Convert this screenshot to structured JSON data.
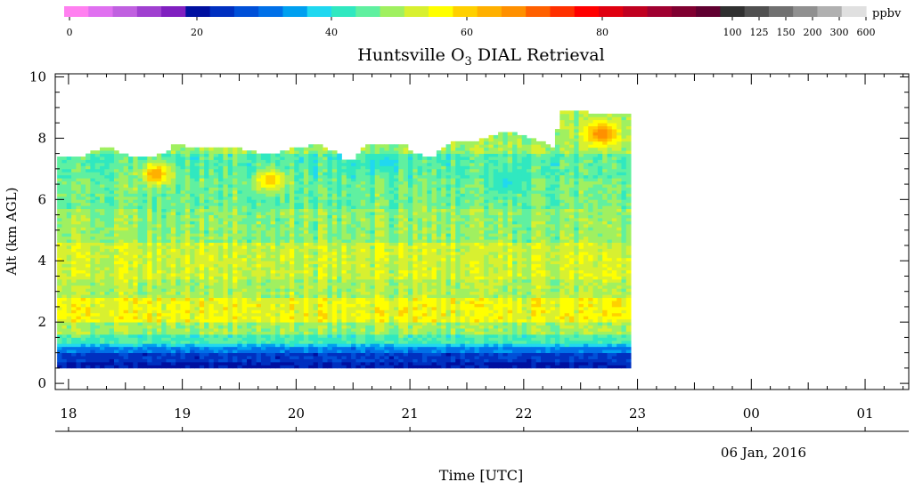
{
  "colorbar": {
    "unit": "ppbv",
    "tick_labels": [
      "0",
      "20",
      "40",
      "60",
      "80",
      "100",
      "125",
      "150",
      "200",
      "300",
      "600"
    ],
    "colors": [
      "#ff80f0",
      "#e070f0",
      "#c060e0",
      "#a040d0",
      "#8020c0",
      "#0010a0",
      "#0030c0",
      "#0050d8",
      "#0070e8",
      "#00a0f0",
      "#20d8f0",
      "#30e8c0",
      "#60f0a0",
      "#a0f060",
      "#d8f030",
      "#ffff00",
      "#ffd000",
      "#ffb000",
      "#ff9000",
      "#ff6000",
      "#ff3000",
      "#ff0000",
      "#e00010",
      "#c00020",
      "#a00030",
      "#800030",
      "#600030",
      "#303030",
      "#505050",
      "#707070",
      "#909090",
      "#b0b0b0",
      "#e0e0e0"
    ]
  },
  "chart_data": {
    "type": "heatmap",
    "title": "Huntsville O3 DIAL Retrieval",
    "title_parts": {
      "pre": "Huntsville O",
      "sub": "3",
      "post": " DIAL Retrieval"
    },
    "xlabel": "Time [UTC]",
    "ylabel": "Alt (km AGL)",
    "date_label": "06 Jan, 2016",
    "x_ticks": [
      "18",
      "19",
      "20",
      "21",
      "22",
      "23",
      "00",
      "01"
    ],
    "y_ticks": [
      0,
      2,
      4,
      6,
      8,
      10
    ],
    "xlim": [
      "17:53",
      "01:23"
    ],
    "ylim": [
      -0.2,
      10.1
    ],
    "data_extent": {
      "start": "17:54",
      "end": "22:55",
      "alt_min_km": 0.5
    },
    "top_boundary_km": [
      [
        "17:54",
        7.3
      ],
      [
        "18:05",
        7.35
      ],
      [
        "18:15",
        7.6
      ],
      [
        "18:20",
        7.65
      ],
      [
        "18:30",
        7.4
      ],
      [
        "18:40",
        7.3
      ],
      [
        "18:50",
        7.5
      ],
      [
        "18:55",
        7.8
      ],
      [
        "19:05",
        7.6
      ],
      [
        "19:15",
        7.7
      ],
      [
        "19:30",
        7.6
      ],
      [
        "19:45",
        7.4
      ],
      [
        "19:55",
        7.6
      ],
      [
        "20:10",
        7.75
      ],
      [
        "20:20",
        7.5
      ],
      [
        "20:25",
        7.2
      ],
      [
        "20:30",
        7.3
      ],
      [
        "20:35",
        7.75
      ],
      [
        "20:45",
        7.7
      ],
      [
        "20:55",
        7.8
      ],
      [
        "21:00",
        7.5
      ],
      [
        "21:10",
        7.3
      ],
      [
        "21:20",
        7.8
      ],
      [
        "21:35",
        7.9
      ],
      [
        "21:50",
        8.2
      ],
      [
        "22:00",
        8.0
      ],
      [
        "22:10",
        7.8
      ],
      [
        "22:15",
        7.6
      ],
      [
        "22:18",
        8.9
      ],
      [
        "22:30",
        8.85
      ],
      [
        "22:35",
        8.7
      ],
      [
        "22:55",
        8.7
      ]
    ],
    "layers": [
      {
        "from_km": 0.5,
        "to_km": 0.7,
        "ozone_ppbv": 22
      },
      {
        "from_km": 0.7,
        "to_km": 0.9,
        "ozone_ppbv": 25
      },
      {
        "from_km": 0.9,
        "to_km": 1.1,
        "ozone_ppbv": 32
      },
      {
        "from_km": 1.1,
        "to_km": 1.3,
        "ozone_ppbv": 38
      },
      {
        "from_km": 1.3,
        "to_km": 1.6,
        "ozone_ppbv": 44
      },
      {
        "from_km": 1.6,
        "to_km": 2.0,
        "ozone_ppbv": 50
      },
      {
        "from_km": 2.0,
        "to_km": 2.8,
        "ozone_ppbv": 56
      },
      {
        "from_km": 2.8,
        "to_km": 3.4,
        "ozone_ppbv": 51
      },
      {
        "from_km": 3.4,
        "to_km": 4.6,
        "ozone_ppbv": 53
      },
      {
        "from_km": 4.6,
        "to_km": 5.6,
        "ozone_ppbv": 49
      },
      {
        "from_km": 5.6,
        "to_km": 6.6,
        "ozone_ppbv": 47
      },
      {
        "from_km": 6.6,
        "to_km": 7.4,
        "ozone_ppbv": 45
      },
      {
        "from_km": 7.4,
        "to_km": 9.0,
        "ozone_ppbv": 50
      }
    ],
    "features": [
      {
        "time": "18:45",
        "alt_km": 6.8,
        "ozone_ppbv": 66
      },
      {
        "time": "19:45",
        "alt_km": 6.6,
        "ozone_ppbv": 62
      },
      {
        "time": "22:40",
        "alt_km": 8.1,
        "ozone_ppbv": 70
      },
      {
        "time": "20:45",
        "alt_km": 7.2,
        "ozone_ppbv": 40
      },
      {
        "time": "21:50",
        "alt_km": 6.5,
        "ozone_ppbv": 40
      }
    ]
  }
}
